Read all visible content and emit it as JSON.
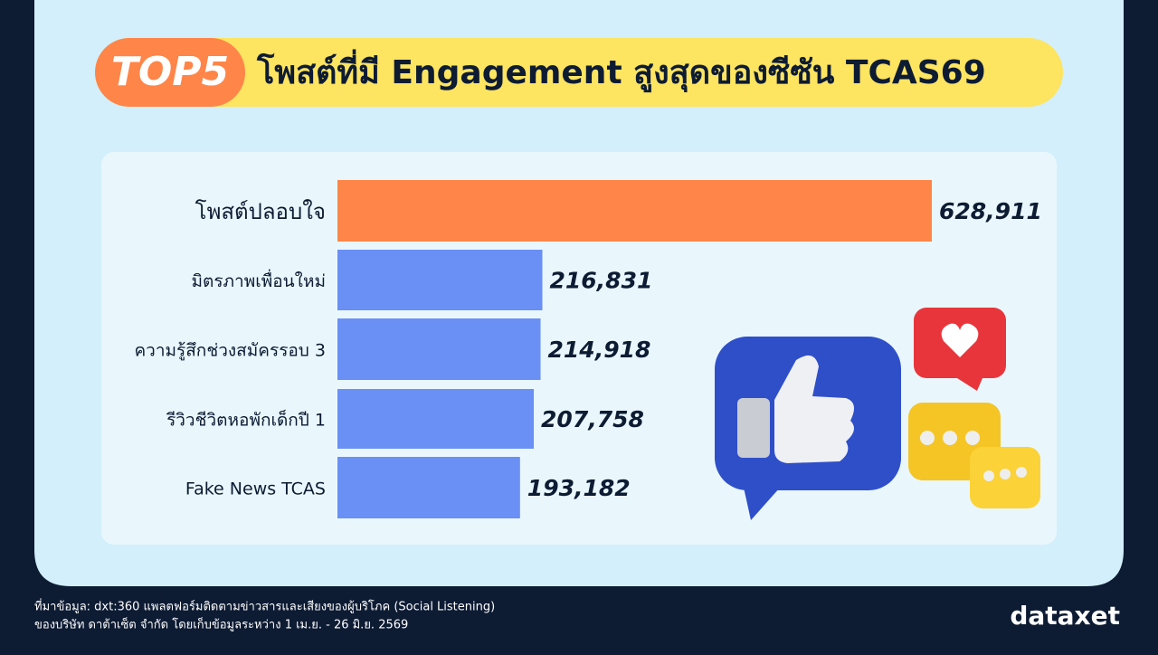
{
  "chart_data": {
    "type": "bar",
    "orientation": "horizontal",
    "badge": "TOP5",
    "title": "โพสต์ที่มี Engagement สูงสุดของซีซัน TCAS69",
    "categories": [
      "โพสต์ปลอบใจ",
      "มิตรภาพเพื่อนใหม่",
      "ความรู้สึกช่วงสมัครรอบ 3",
      "รีวิวชีวิตหอพักเด็กปี 1",
      "Fake News TCAS"
    ],
    "values": [
      628911,
      216831,
      214918,
      207758,
      193182
    ],
    "value_labels": [
      "628,911",
      "216,831",
      "214,918",
      "207,758",
      "193,182"
    ],
    "colors": [
      "#ff8548",
      "#6a8ff5",
      "#6a8ff5",
      "#6a8ff5",
      "#6a8ff5"
    ]
  },
  "footer": {
    "source": [
      "ที่มาข้อมูล: dxt:360 แพลตฟอร์มติดตามข่าวสารและเสียงของผู้บริโภค (Social Listening)",
      "ของบริษัท ดาต้าเซ็ต จำกัด โดยเก็บข้อมูลระหว่าง 1 เม.ย. - 26 มิ.ย. 2569"
    ],
    "logo": "dataxet"
  }
}
